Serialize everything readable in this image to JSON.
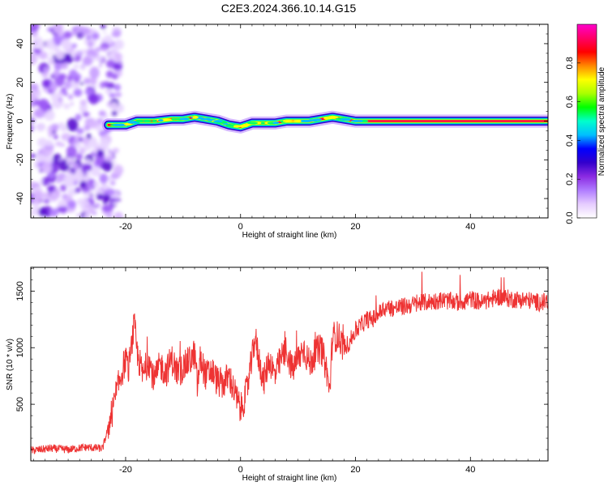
{
  "title": "C2E3.2024.366.10.14.G15",
  "chart_data": [
    {
      "type": "heatmap",
      "xlabel": "Height of straight line (km)",
      "ylabel": "Frequency (Hz)",
      "xlim": [
        -36.5,
        53.5
      ],
      "ylim": [
        -50,
        50
      ],
      "x_ticks": [
        -20,
        0,
        20,
        40
      ],
      "y_ticks": [
        -40,
        -20,
        0,
        20,
        40
      ],
      "colorbar": {
        "label": "Normalized spectral amplitude",
        "range": [
          0,
          1
        ],
        "ticks": [
          0.0,
          0.2,
          0.4,
          0.6,
          0.8
        ],
        "colors": [
          "#ffffff",
          "#e6ccff",
          "#b07cff",
          "#8a2be2",
          "#3300cc",
          "#0000ff",
          "#00bfff",
          "#00ffcc",
          "#00ff00",
          "#aaff00",
          "#ffff00",
          "#ff8800",
          "#ff0000",
          "#ff0066",
          "#ff00cc"
        ]
      },
      "ridge": {
        "x": [
          -23,
          -20,
          -18,
          -15,
          -12,
          -10,
          -8,
          -6,
          -4,
          -2,
          0,
          2,
          4,
          6,
          8,
          10,
          12,
          14,
          16,
          18,
          20,
          25,
          30,
          40,
          50,
          53.5
        ],
        "frequency": [
          -2,
          -2,
          0,
          0,
          1,
          1,
          2,
          1,
          0,
          -2,
          -3,
          -1,
          -1,
          -1,
          0,
          0,
          0,
          1,
          2,
          1,
          0,
          0,
          0,
          0,
          0,
          0
        ]
      },
      "noise_region_x": [
        -36.5,
        -23
      ]
    },
    {
      "type": "line",
      "xlabel": "Height of straight line (km)",
      "ylabel": "SNR (10 * v/v)",
      "xlim": [
        -36.5,
        53.5
      ],
      "ylim": [
        0,
        1710
      ],
      "x_ticks": [
        -20,
        0,
        20,
        40
      ],
      "y_ticks": [
        500,
        1000,
        1500
      ],
      "series": [
        {
          "color": "#ee3333",
          "x": [
            -36.5,
            -33,
            -30,
            -27,
            -24,
            -23,
            -22,
            -21,
            -20,
            -19.5,
            -19,
            -18.5,
            -18,
            -17,
            -16,
            -15,
            -14,
            -13,
            -12,
            -11,
            -10,
            -9,
            -8.5,
            -8,
            -7.5,
            -7,
            -6,
            -5,
            -4,
            -3,
            -2,
            -1,
            0,
            1,
            2,
            2.5,
            3,
            4,
            5,
            6,
            7,
            8,
            9,
            10,
            11,
            12,
            13,
            14,
            15,
            15.5,
            16,
            17,
            18,
            19,
            20,
            21,
            22,
            23,
            24,
            25,
            27,
            30,
            32,
            35,
            38,
            40,
            42,
            45,
            47,
            50,
            52,
            53.5
          ],
          "values": [
            90,
            110,
            100,
            120,
            110,
            300,
            500,
            720,
            900,
            800,
            1000,
            1200,
            950,
            750,
            900,
            700,
            850,
            780,
            900,
            780,
            820,
            880,
            900,
            950,
            650,
            900,
            750,
            800,
            700,
            680,
            750,
            600,
            450,
            600,
            900,
            1100,
            950,
            700,
            900,
            750,
            900,
            980,
            800,
            900,
            1000,
            850,
            950,
            1000,
            800,
            600,
            1100,
            1100,
            1000,
            1050,
            1150,
            1200,
            1250,
            1250,
            1300,
            1350,
            1350,
            1380,
            1400,
            1420,
            1400,
            1430,
            1400,
            1450,
            1430,
            1420,
            1400,
            1410
          ]
        }
      ]
    }
  ]
}
